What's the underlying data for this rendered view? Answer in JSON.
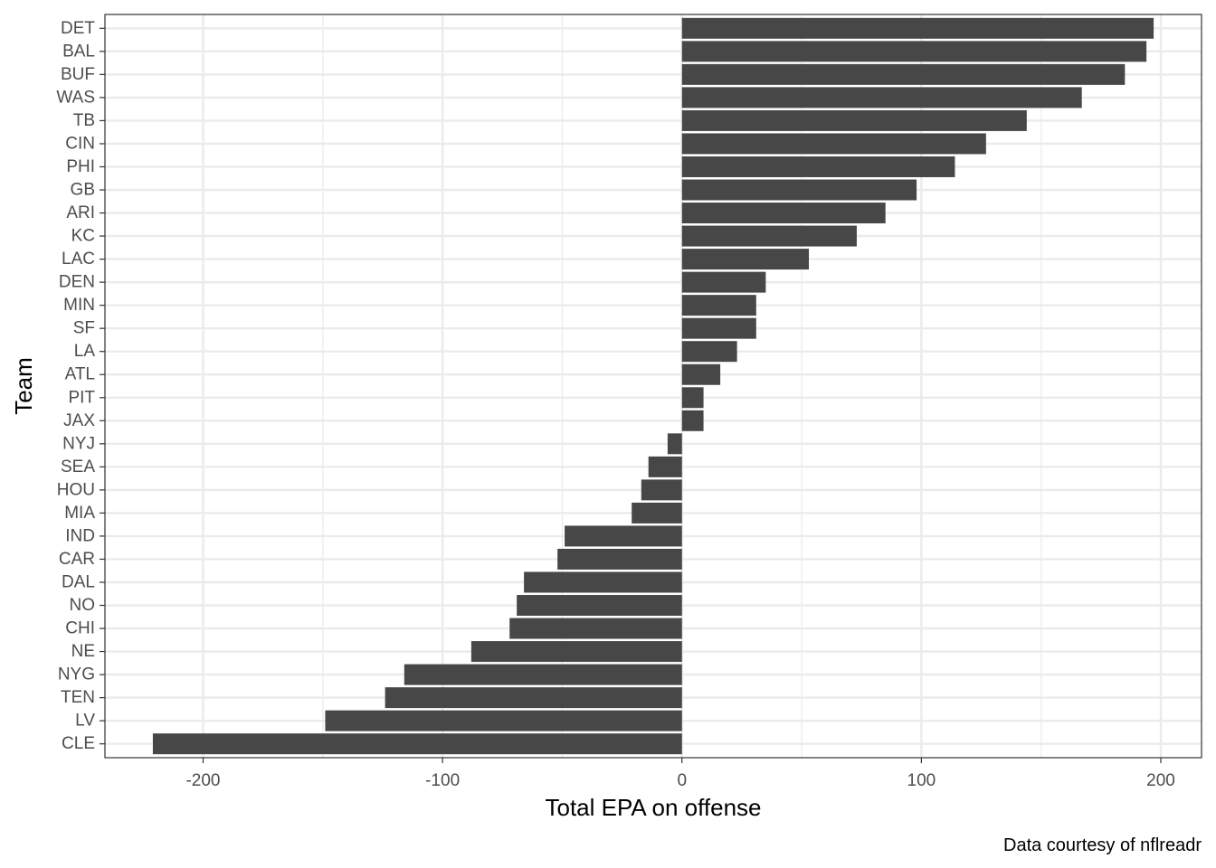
{
  "chart_data": {
    "type": "bar",
    "orientation": "horizontal",
    "categories": [
      "DET",
      "BAL",
      "BUF",
      "WAS",
      "TB",
      "CIN",
      "PHI",
      "GB",
      "ARI",
      "KC",
      "LAC",
      "DEN",
      "MIN",
      "SF",
      "LA",
      "ATL",
      "PIT",
      "JAX",
      "NYJ",
      "SEA",
      "HOU",
      "MIA",
      "IND",
      "CAR",
      "DAL",
      "NO",
      "CHI",
      "NE",
      "NYG",
      "TEN",
      "LV",
      "CLE"
    ],
    "values": [
      197,
      194,
      185,
      167,
      144,
      127,
      114,
      98,
      85,
      73,
      53,
      35,
      31,
      31,
      23,
      16,
      9,
      9,
      -6,
      -14,
      -17,
      -21,
      -49,
      -52,
      -66,
      -69,
      -72,
      -88,
      -116,
      -124,
      -149,
      -221
    ],
    "title": "",
    "xlabel": "Total EPA on offense",
    "ylabel": "Team",
    "xlim": [
      -241,
      217
    ],
    "xticks": [
      -200,
      -100,
      0,
      100,
      200
    ],
    "xtick_labels": [
      "-200",
      "-100",
      "0",
      "100",
      "200"
    ],
    "caption": "Data courtesy of nflreadr",
    "bar_color": "#474747",
    "grid": true,
    "legend": "none"
  }
}
